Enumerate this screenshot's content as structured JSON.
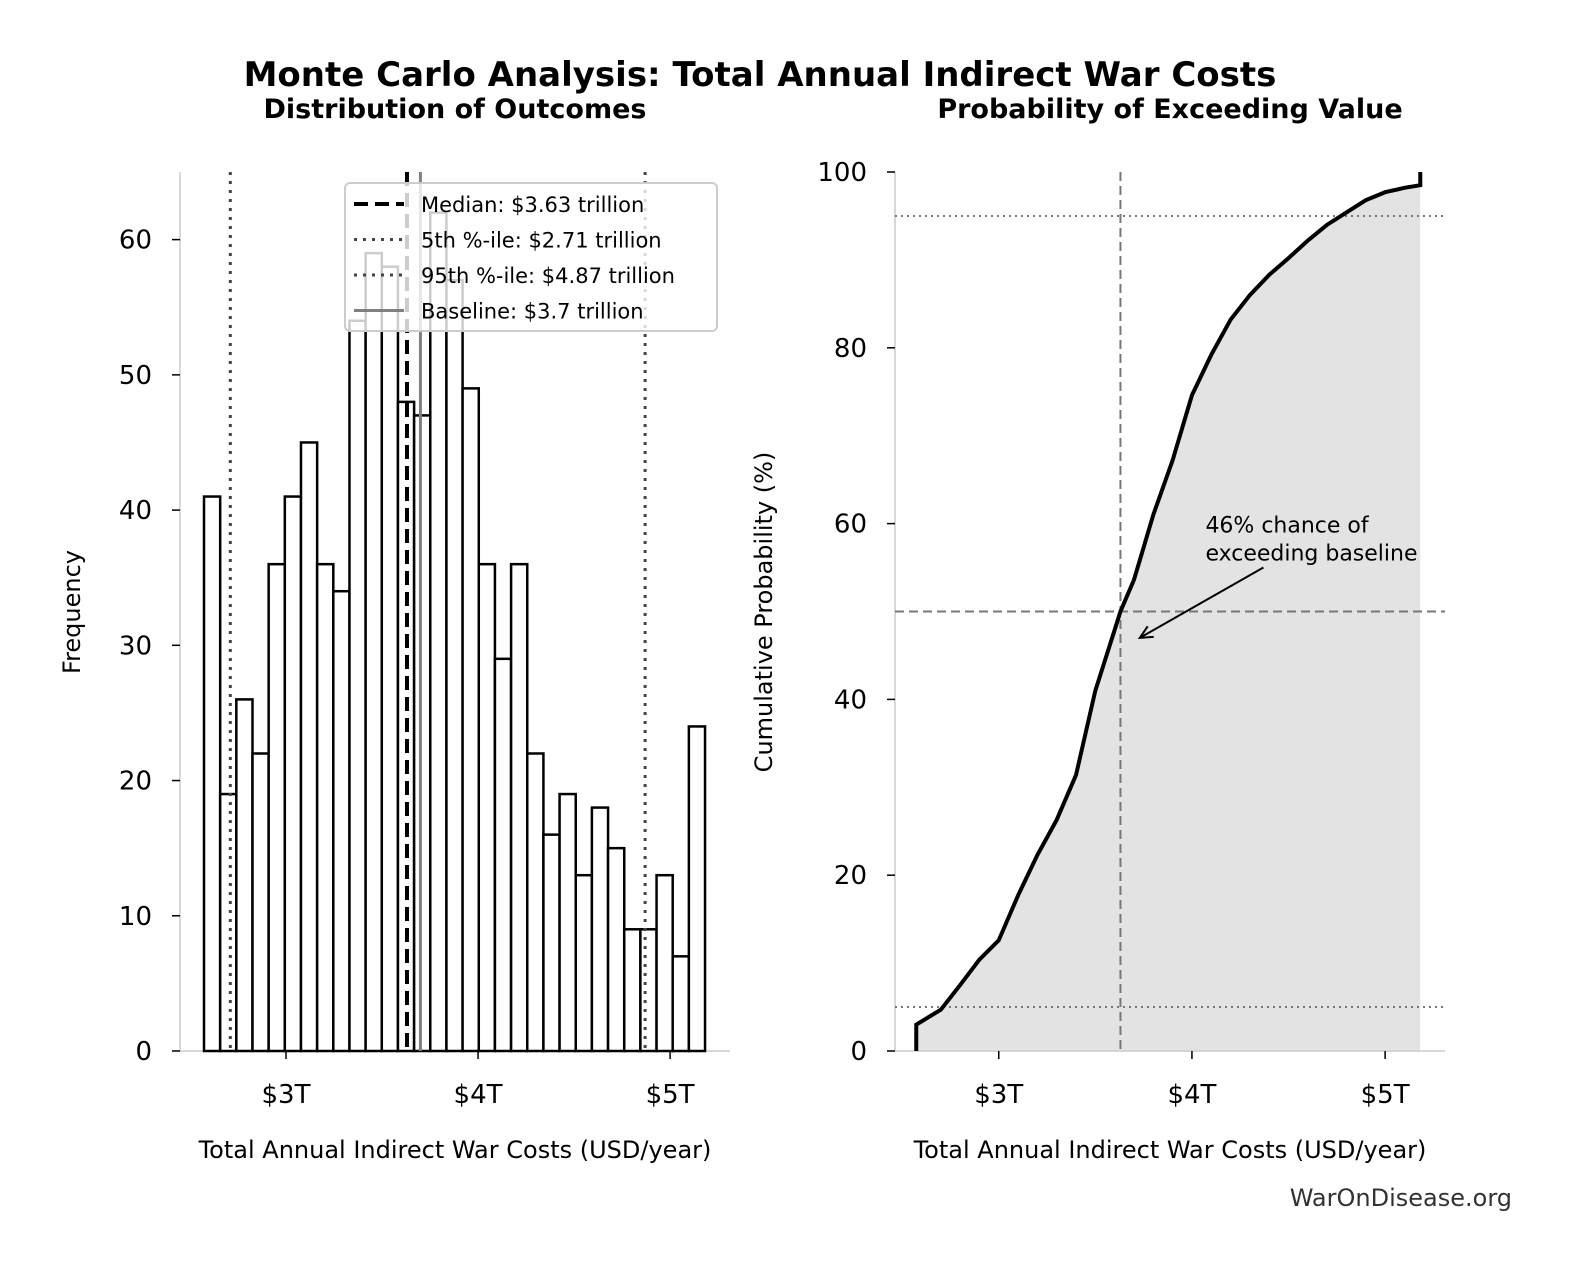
{
  "suptitle": "Monte Carlo Analysis: Total Annual Indirect War Costs",
  "watermark": "WarOnDisease.org",
  "chart_data": [
    {
      "type": "bar",
      "title": "Distribution of Outcomes",
      "xlabel": "Total Annual Indirect War Costs (USD/year)",
      "ylabel": "Frequency",
      "xlim": [
        2.448,
        5.312
      ],
      "ylim": [
        0,
        65
      ],
      "xticks": [
        {
          "v": 3,
          "label": "$3T"
        },
        {
          "v": 4,
          "label": "$4T"
        },
        {
          "v": 5,
          "label": "$5T"
        }
      ],
      "yticks": [
        {
          "v": 0,
          "label": "0"
        },
        {
          "v": 10,
          "label": "10"
        },
        {
          "v": 20,
          "label": "20"
        },
        {
          "v": 30,
          "label": "30"
        },
        {
          "v": 40,
          "label": "40"
        },
        {
          "v": 50,
          "label": "50"
        },
        {
          "v": 60,
          "label": "60"
        }
      ],
      "bin_start": 2.573,
      "bin_end": 5.182,
      "values": [
        41,
        19,
        26,
        22,
        36,
        41,
        45,
        36,
        34,
        54,
        59,
        58,
        48,
        47,
        62,
        57,
        49,
        36,
        29,
        36,
        22,
        16,
        19,
        13,
        18,
        15,
        9,
        9,
        13,
        7,
        24
      ],
      "vlines": [
        {
          "x": 3.63,
          "style": "dashed",
          "color": "#000000",
          "label": "Median: $3.63 trillion"
        },
        {
          "x": 2.71,
          "style": "dotted",
          "color": "#444444",
          "label": "5th %-ile: $2.71 trillion"
        },
        {
          "x": 4.87,
          "style": "dotted",
          "color": "#444444",
          "label": "95th %-ile: $4.87 trillion"
        },
        {
          "x": 3.7,
          "style": "solid",
          "color": "#808080",
          "label": "Baseline: $3.7 trillion"
        }
      ],
      "legend": "top-right"
    },
    {
      "type": "area",
      "title": "Probability of Exceeding Value",
      "xlabel": "Total Annual Indirect War Costs (USD/year)",
      "ylabel": "Cumulative Probability (%)",
      "xlim": [
        2.463,
        5.31
      ],
      "ylim": [
        0,
        100
      ],
      "xticks": [
        {
          "v": 3,
          "label": "$3T"
        },
        {
          "v": 4,
          "label": "$4T"
        },
        {
          "v": 5,
          "label": "$5T"
        }
      ],
      "yticks": [
        {
          "v": 0,
          "label": "0"
        },
        {
          "v": 20,
          "label": "20"
        },
        {
          "v": 40,
          "label": "40"
        },
        {
          "v": 60,
          "label": "60"
        },
        {
          "v": 80,
          "label": "80"
        },
        {
          "v": 100,
          "label": "100"
        }
      ],
      "x": [
        2.573,
        2.573,
        2.7,
        2.8,
        2.9,
        3.0,
        3.1,
        3.2,
        3.3,
        3.4,
        3.5,
        3.6,
        3.63,
        3.7,
        3.8,
        3.9,
        4.0,
        4.1,
        4.2,
        4.3,
        4.4,
        4.5,
        4.6,
        4.7,
        4.8,
        4.9,
        5.0,
        5.1,
        5.182,
        5.182
      ],
      "y": [
        0,
        3,
        4.7,
        7.5,
        10.4,
        12.6,
        17.7,
        22.3,
        26.3,
        31.4,
        41,
        47.9,
        50,
        53.6,
        61,
        67.2,
        74.6,
        79.2,
        83.2,
        86,
        88.3,
        90.2,
        92.2,
        94,
        95.4,
        96.8,
        97.7,
        98.2,
        98.5,
        100
      ],
      "hlines": [
        {
          "y": 5,
          "style": "dotted"
        },
        {
          "y": 50,
          "style": "dashed"
        },
        {
          "y": 95,
          "style": "dotted"
        }
      ],
      "vlines": [
        {
          "x": 3.63,
          "style": "dashed"
        }
      ],
      "fill_color": "#e3e3e3",
      "annotation": {
        "text_lines": [
          "46% chance of",
          "exceeding baseline"
        ],
        "text_x": 4.07,
        "text_y": 59,
        "arrow_to": [
          3.73,
          47
        ],
        "arrow_from": [
          4.37,
          55
        ]
      }
    }
  ]
}
